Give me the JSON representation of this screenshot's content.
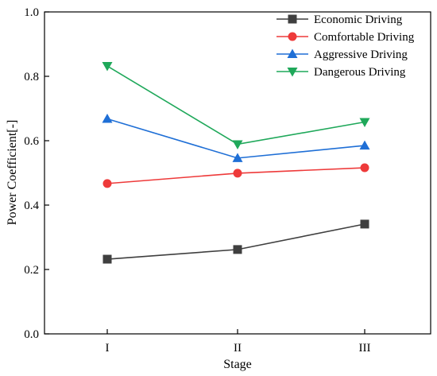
{
  "chart_data": {
    "type": "line",
    "categories": [
      "I",
      "II",
      "III"
    ],
    "xlabel": "Stage",
    "ylabel": "Power Coefficient[-]",
    "ylim": [
      0.0,
      1.0
    ],
    "yticks": [
      "0.0",
      "0.2",
      "0.4",
      "0.6",
      "0.8",
      "1.0"
    ],
    "grid": false,
    "legend_position": "top-right",
    "series": [
      {
        "name": "Economic Driving",
        "values": [
          0.232,
          0.262,
          0.341
        ],
        "color": "#3f3f3f",
        "marker": "square"
      },
      {
        "name": "Comfortable Driving",
        "values": [
          0.467,
          0.499,
          0.516
        ],
        "color": "#ee3a3a",
        "marker": "circle"
      },
      {
        "name": "Aggressive Driving",
        "values": [
          0.668,
          0.546,
          0.585
        ],
        "color": "#1f6fd6",
        "marker": "triangle-up"
      },
      {
        "name": "Dangerous Driving",
        "values": [
          0.832,
          0.589,
          0.658
        ],
        "color": "#1fa85a",
        "marker": "triangle-down"
      }
    ]
  }
}
